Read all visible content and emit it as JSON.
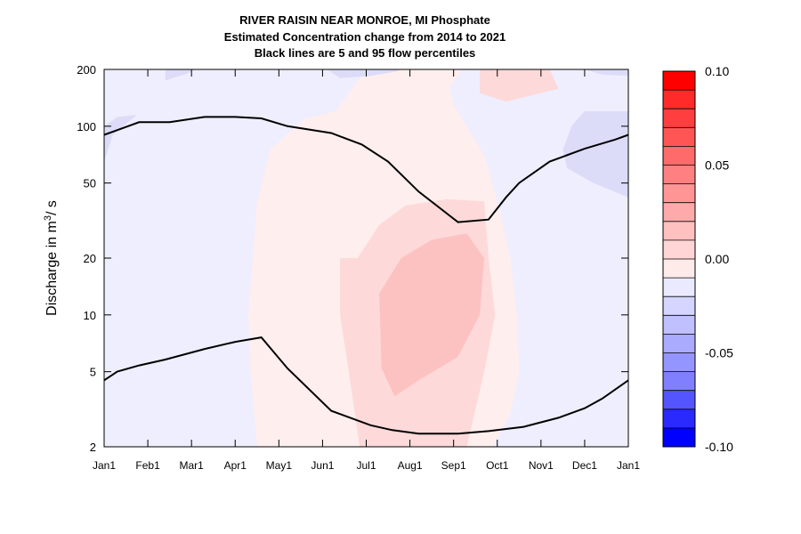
{
  "chart_data": {
    "type": "heatmap",
    "title_lines": [
      "RIVER RAISIN NEAR MONROE, MI  Phosphate",
      "Estimated Concentration change from 2014 to 2021",
      "Black lines are 5 and 95 flow percentiles"
    ],
    "ylabel": {
      "prefix": "Discharge in m",
      "sup": "3",
      "suffix": "/ s"
    },
    "y_scale": "log",
    "ylim": [
      2,
      200
    ],
    "y_ticks": [
      2,
      5,
      10,
      20,
      50,
      100,
      200
    ],
    "x_ticks": [
      "Jan1",
      "Feb1",
      "Mar1",
      "Apr1",
      "May1",
      "Jun1",
      "Jul1",
      "Aug1",
      "Sep1",
      "Oct1",
      "Nov1",
      "Dec1",
      "Jan1"
    ],
    "colorbar": {
      "ticks": [
        "0.10",
        "0.05",
        "0.00",
        "-0.05",
        "-0.10"
      ],
      "tick_values": [
        0.1,
        0.05,
        0.0,
        -0.05,
        -0.1
      ],
      "range": [
        -0.1,
        0.1
      ],
      "levels": 20,
      "colors_high_to_low": [
        "#ff0000",
        "#ff2a2a",
        "#ff3f3f",
        "#ff5555",
        "#ff6a6a",
        "#ff8080",
        "#ff9595",
        "#ffaaaa",
        "#ffc0c0",
        "#ffd5d5",
        "#ffeaea",
        "#eaeaff",
        "#d5d5ff",
        "#c0c0ff",
        "#aaaaff",
        "#9595ff",
        "#8080ff",
        "#5555ff",
        "#2a2aff",
        "#0000ff"
      ]
    },
    "contours": [
      {
        "name": "background",
        "level": "0.00 to -0.01",
        "color": "#eeeefe",
        "points": [
          [
            0,
            2
          ],
          [
            12,
            2
          ],
          [
            12,
            200
          ],
          [
            0,
            200
          ]
        ]
      },
      {
        "name": "positive-0.00-0.01",
        "level": "0.00 to 0.01",
        "color": "#feeeee",
        "points": [
          [
            3.5,
            2
          ],
          [
            8.9,
            2
          ],
          [
            9.3,
            3
          ],
          [
            9.5,
            5
          ],
          [
            9.45,
            10
          ],
          [
            9.3,
            20
          ],
          [
            9.0,
            40
          ],
          [
            8.7,
            70
          ],
          [
            8.3,
            100
          ],
          [
            8.0,
            130
          ],
          [
            7.9,
            160
          ],
          [
            8.2,
            200
          ],
          [
            6.0,
            200
          ],
          [
            5.3,
            120
          ],
          [
            4.6,
            110
          ],
          [
            3.8,
            75
          ],
          [
            3.5,
            40
          ],
          [
            3.4,
            20
          ],
          [
            3.3,
            10
          ],
          [
            3.35,
            5
          ]
        ]
      },
      {
        "name": "positive-0.01-0.02",
        "level": "0.01 to 0.02",
        "color": "#fdd9d9",
        "points": [
          [
            5.85,
            2
          ],
          [
            8.3,
            2
          ],
          [
            8.7,
            5
          ],
          [
            8.95,
            10
          ],
          [
            8.8,
            20
          ],
          [
            8.7,
            40
          ],
          [
            7.85,
            41
          ],
          [
            6.9,
            38
          ],
          [
            6.3,
            30
          ],
          [
            5.8,
            20
          ],
          [
            5.4,
            20
          ],
          [
            5.4,
            10
          ],
          [
            5.6,
            5
          ]
        ]
      },
      {
        "name": "positive-0.02-0.03",
        "level": "0.02 to 0.03",
        "color": "#fcc2c2",
        "points": [
          [
            6.65,
            3.7
          ],
          [
            7.2,
            4.5
          ],
          [
            8.1,
            6
          ],
          [
            8.6,
            10
          ],
          [
            8.7,
            20
          ],
          [
            8.3,
            27
          ],
          [
            7.5,
            25
          ],
          [
            6.8,
            20
          ],
          [
            6.3,
            13
          ],
          [
            6.35,
            5.2
          ]
        ]
      },
      {
        "name": "positive-top-0.01-0.02",
        "level": "0.01 to 0.02",
        "color": "#fdd9d9",
        "points": [
          [
            8.6,
            200
          ],
          [
            8.6,
            150
          ],
          [
            9.2,
            135
          ],
          [
            10.4,
            158
          ],
          [
            10.2,
            200
          ]
        ]
      },
      {
        "name": "negative-top-a",
        "level": "-0.01 to -0.02",
        "color": "#dcdcf8",
        "points": [
          [
            1.4,
            200
          ],
          [
            1.4,
            175
          ],
          [
            1.9,
            190
          ],
          [
            2.1,
            200
          ]
        ]
      },
      {
        "name": "negative-top-b",
        "level": "-0.01 to -0.02",
        "color": "#dcdcf8",
        "points": [
          [
            5.1,
            200
          ],
          [
            5.4,
            180
          ],
          [
            6.1,
            185
          ],
          [
            6.7,
            195
          ],
          [
            6.8,
            200
          ]
        ]
      },
      {
        "name": "negative-top-c",
        "level": "-0.01 to -0.02",
        "color": "#dcdcf8",
        "points": [
          [
            11.0,
            200
          ],
          [
            11.4,
            188
          ],
          [
            12,
            185
          ],
          [
            12,
            200
          ]
        ]
      },
      {
        "name": "negative-right",
        "level": "-0.01 to -0.02",
        "color": "#dcdcf8",
        "points": [
          [
            12,
            42
          ],
          [
            11.2,
            50
          ],
          [
            10.6,
            60
          ],
          [
            10.5,
            75
          ],
          [
            10.7,
            100
          ],
          [
            11.0,
            120
          ],
          [
            12,
            120
          ]
        ]
      },
      {
        "name": "negative-left",
        "level": "-0.01 to -0.02",
        "color": "#dcdcf8",
        "points": [
          [
            0,
            65
          ],
          [
            0.2,
            90
          ],
          [
            0.75,
            115
          ],
          [
            0.3,
            112
          ],
          [
            0,
            100
          ]
        ]
      }
    ],
    "series": [
      {
        "name": "",
        "color": "#000000",
        "x": [
          0,
          0.3,
          0.8,
          1.4,
          2.3,
          3.0,
          3.6,
          4.2,
          5.2,
          6.1,
          6.6,
          7.2,
          8.1,
          8.8,
          9.6,
          10.4,
          11.0,
          11.4,
          12
        ],
        "y": [
          4.5,
          5.0,
          5.4,
          5.8,
          6.6,
          7.2,
          7.6,
          5.2,
          3.1,
          2.6,
          2.45,
          2.35,
          2.35,
          2.42,
          2.55,
          2.85,
          3.2,
          3.6,
          4.5
        ]
      },
      {
        "name": "",
        "color": "#000000",
        "x": [
          0,
          0.8,
          1.5,
          2.3,
          3.0,
          3.6,
          4.2,
          5.2,
          5.9,
          6.5,
          7.2,
          8.1,
          8.8,
          9.2,
          9.5,
          10.2,
          11.0,
          11.7,
          12
        ],
        "y": [
          90,
          105,
          105,
          112,
          112,
          110,
          100,
          92,
          80,
          65,
          45,
          31,
          32,
          42,
          50,
          65,
          76,
          85,
          90
        ]
      }
    ]
  }
}
